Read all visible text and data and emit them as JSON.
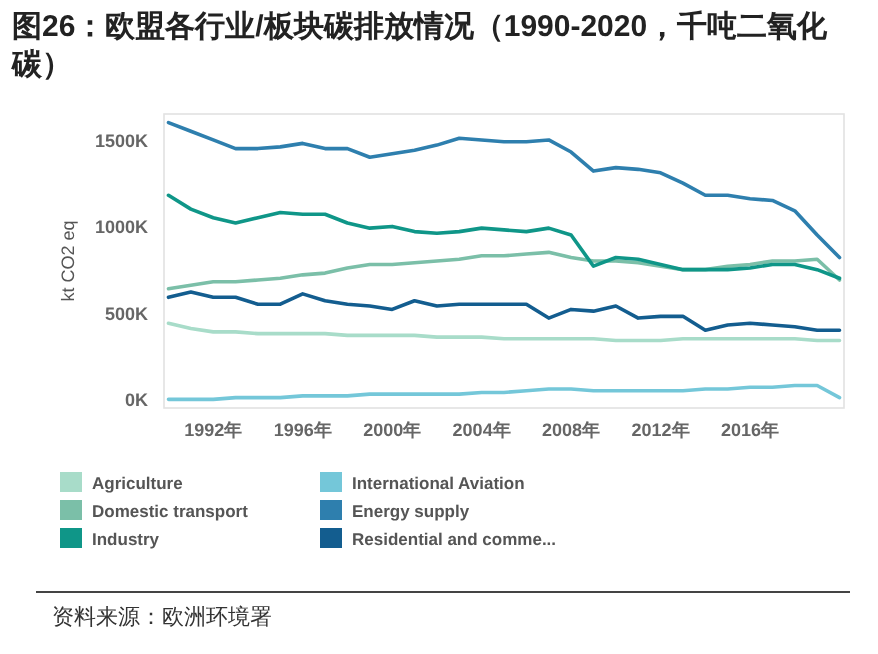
{
  "chart_data": {
    "type": "line",
    "title": "图26：欧盟各行业/板块碳排放情况（1990-2020，千吨二氧化碳）",
    "ylabel": "kt CO2 eq",
    "x": [
      1990,
      1991,
      1992,
      1993,
      1994,
      1995,
      1996,
      1997,
      1998,
      1999,
      2000,
      2001,
      2002,
      2003,
      2004,
      2005,
      2006,
      2007,
      2008,
      2009,
      2010,
      2011,
      2012,
      2013,
      2014,
      2015,
      2016,
      2017,
      2018,
      2019,
      2020
    ],
    "series": [
      {
        "name": "Agriculture",
        "color": "#a8dcc9",
        "values": [
          440,
          410,
          390,
          390,
          380,
          380,
          380,
          380,
          370,
          370,
          370,
          370,
          360,
          360,
          360,
          350,
          350,
          350,
          350,
          350,
          340,
          340,
          340,
          350,
          350,
          350,
          350,
          350,
          350,
          340,
          340
        ]
      },
      {
        "name": "Domestic transport",
        "color": "#7bbfa8",
        "values": [
          640,
          660,
          680,
          680,
          690,
          700,
          720,
          730,
          760,
          780,
          780,
          790,
          800,
          810,
          830,
          830,
          840,
          850,
          820,
          800,
          800,
          790,
          770,
          750,
          750,
          770,
          780,
          800,
          800,
          810,
          690
        ]
      },
      {
        "name": "Industry",
        "color": "#0f9688",
        "values": [
          1180,
          1100,
          1050,
          1020,
          1050,
          1080,
          1070,
          1070,
          1020,
          990,
          1000,
          970,
          960,
          970,
          990,
          980,
          970,
          990,
          950,
          770,
          820,
          810,
          780,
          750,
          750,
          750,
          760,
          780,
          780,
          750,
          700
        ]
      },
      {
        "name": "International Aviation",
        "color": "#74c7d9",
        "values": [
          0,
          0,
          0,
          10,
          10,
          10,
          20,
          20,
          20,
          30,
          30,
          30,
          30,
          30,
          40,
          40,
          50,
          60,
          60,
          50,
          50,
          50,
          50,
          50,
          60,
          60,
          70,
          70,
          80,
          80,
          10
        ]
      },
      {
        "name": "Energy supply",
        "color": "#2e7fae",
        "values": [
          1600,
          1550,
          1500,
          1450,
          1450,
          1460,
          1480,
          1450,
          1450,
          1400,
          1420,
          1440,
          1470,
          1510,
          1500,
          1490,
          1490,
          1500,
          1430,
          1320,
          1340,
          1330,
          1310,
          1250,
          1180,
          1180,
          1160,
          1150,
          1090,
          950,
          820
        ]
      },
      {
        "name": "Residential and comme...",
        "color": "#135d8f",
        "values": [
          590,
          620,
          590,
          590,
          550,
          550,
          610,
          570,
          550,
          540,
          520,
          570,
          540,
          550,
          550,
          550,
          550,
          470,
          520,
          510,
          540,
          470,
          480,
          480,
          400,
          430,
          440,
          430,
          420,
          400,
          400
        ]
      }
    ],
    "xlim": [
      1989.8,
      2020.2
    ],
    "ylim": [
      -50,
      1650
    ],
    "xticks": [
      {
        "value": 1992,
        "label": "1992年"
      },
      {
        "value": 1996,
        "label": "1996年"
      },
      {
        "value": 2000,
        "label": "2000年"
      },
      {
        "value": 2004,
        "label": "2004年"
      },
      {
        "value": 2008,
        "label": "2008年"
      },
      {
        "value": 2012,
        "label": "2012年"
      },
      {
        "value": 2016,
        "label": "2016年"
      }
    ],
    "yticks": [
      {
        "value": 0,
        "label": "0K"
      },
      {
        "value": 500,
        "label": "500K"
      },
      {
        "value": 1000,
        "label": "1000K"
      },
      {
        "value": 1500,
        "label": "1500K"
      }
    ],
    "grid": false,
    "legend": "bottom",
    "marker": "none",
    "line_style": "solid",
    "annotations": [
      "资料来源：欧洲环境署"
    ]
  }
}
